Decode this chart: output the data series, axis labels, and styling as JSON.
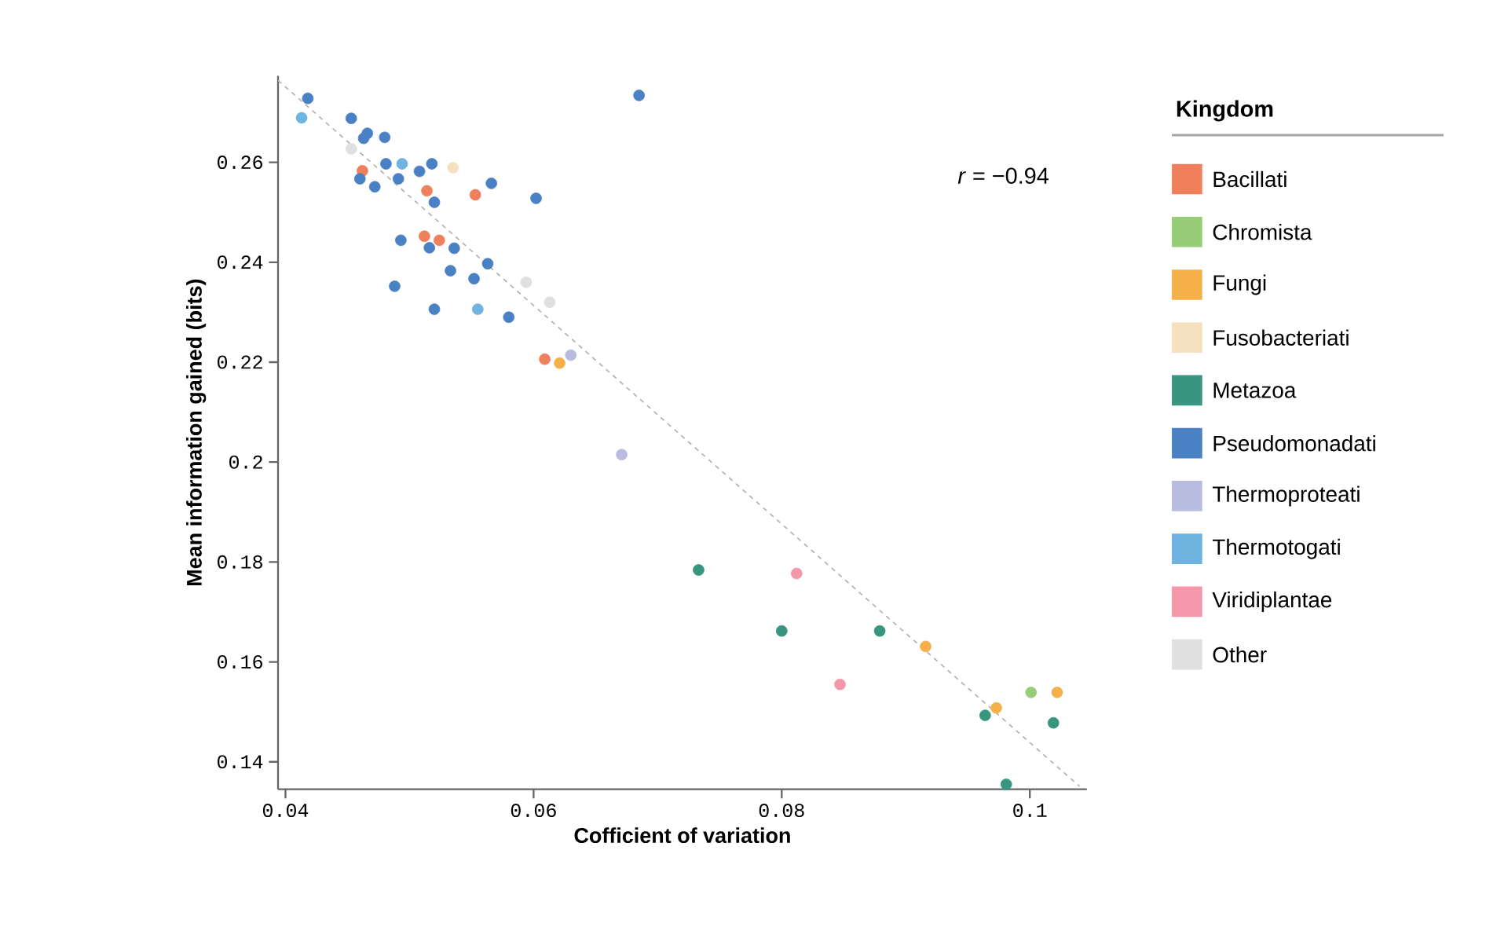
{
  "chart_data": {
    "type": "scatter",
    "xlabel": "Cofficient of variation",
    "ylabel": "Mean information gained (bits)",
    "legend_title": "Kingdom",
    "legend": "right",
    "grid": false,
    "xlim": [
      0.0394,
      0.1046
    ],
    "ylim": [
      0.1345,
      0.2773
    ],
    "xticks": [
      0.04,
      0.06,
      0.08,
      0.1
    ],
    "yticks": [
      0.14,
      0.16,
      0.18,
      0.2,
      0.22,
      0.24,
      0.26
    ],
    "annotations": [
      "*r* = −0.94"
    ],
    "series": [
      {
        "name": "Bacillati",
        "color": "#f07f5c",
        "marker": "circle",
        "x": [
          0.0462,
          0.0514,
          0.0553,
          0.0512,
          0.0524,
          0.0609
        ],
        "values": [
          0.2583,
          0.2543,
          0.2535,
          0.2452,
          0.2444,
          0.2206
        ]
      },
      {
        "name": "Chromista",
        "color": "#98cd77",
        "marker": "circle",
        "x": [
          0.1001
        ],
        "values": [
          0.1539
        ]
      },
      {
        "name": "Fungi",
        "color": "#f5b04a",
        "marker": "circle",
        "x": [
          0.0621,
          0.0916,
          0.0973,
          0.1022
        ],
        "values": [
          0.2198,
          0.1631,
          0.1508,
          0.1539
        ]
      },
      {
        "name": "Fusobacteriati",
        "color": "#f5e0c0",
        "marker": "circle",
        "x": [
          0.0535
        ],
        "values": [
          0.2589
        ]
      },
      {
        "name": "Metazoa",
        "color": "#379580",
        "marker": "circle",
        "x": [
          0.0733,
          0.08,
          0.0879,
          0.0964,
          0.1019,
          0.0981
        ],
        "values": [
          0.1784,
          0.1662,
          0.1662,
          0.1493,
          0.1478,
          0.1355
        ]
      },
      {
        "name": "Pseudomonadati",
        "color": "#4a80c4",
        "marker": "circle",
        "x": [
          0.0418,
          0.0453,
          0.0466,
          0.0463,
          0.048,
          0.0481,
          0.0518,
          0.0508,
          0.046,
          0.0491,
          0.0472,
          0.0566,
          0.0602,
          0.052,
          0.0493,
          0.0516,
          0.0536,
          0.0563,
          0.0533,
          0.0552,
          0.0488,
          0.052,
          0.058,
          0.0685
        ],
        "values": [
          0.2728,
          0.2688,
          0.2658,
          0.2648,
          0.265,
          0.2597,
          0.2597,
          0.2582,
          0.2567,
          0.2567,
          0.2551,
          0.2558,
          0.2528,
          0.252,
          0.2444,
          0.2429,
          0.2428,
          0.2397,
          0.2383,
          0.2367,
          0.2352,
          0.2306,
          0.229,
          0.2734
        ]
      },
      {
        "name": "Thermoproteati",
        "color": "#b8bcde",
        "marker": "circle",
        "x": [
          0.063,
          0.0671
        ],
        "values": [
          0.2214,
          0.2015
        ]
      },
      {
        "name": "Thermotogati",
        "color": "#6fb3e0",
        "marker": "circle",
        "x": [
          0.0413,
          0.0494,
          0.0555
        ],
        "values": [
          0.2689,
          0.2597,
          0.2306
        ]
      },
      {
        "name": "Viridiplantae",
        "color": "#f497ab",
        "marker": "circle",
        "x": [
          0.0812,
          0.0847
        ],
        "values": [
          0.1777,
          0.1555
        ]
      },
      {
        "name": "Other",
        "color": "#e0e0e0",
        "marker": "circle",
        "x": [
          0.0453,
          0.0594,
          0.0613
        ],
        "values": [
          0.2627,
          0.236,
          0.232
        ]
      },
      {
        "type": "line",
        "line_style": "dashed",
        "marker": "none",
        "color": "#b8b2ac",
        "x": [
          0.0394,
          0.104
        ],
        "values": [
          0.2764,
          0.1351
        ]
      }
    ]
  }
}
